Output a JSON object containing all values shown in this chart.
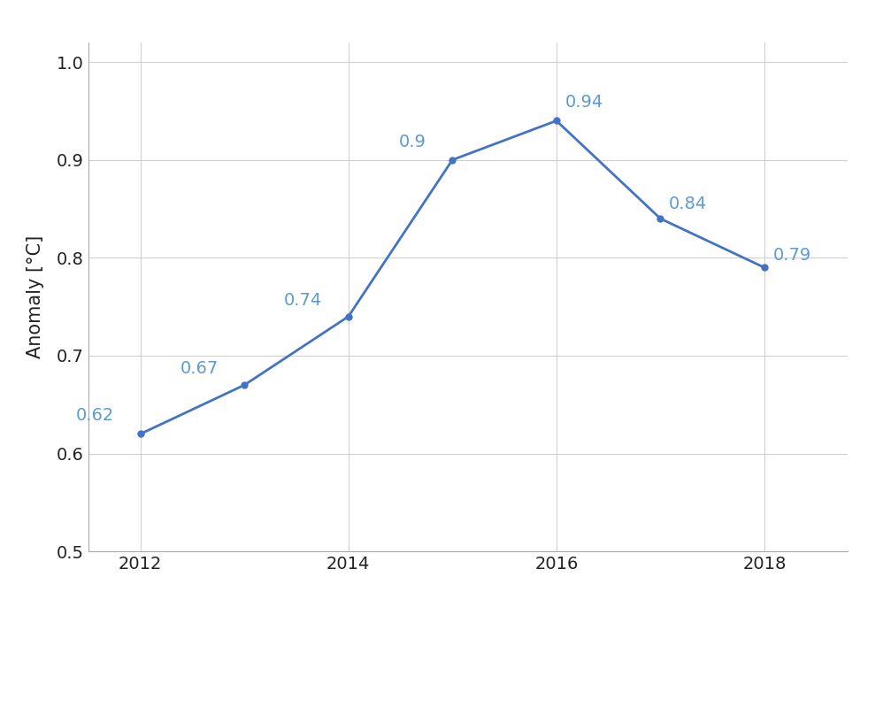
{
  "years": [
    2012,
    2013,
    2014,
    2015,
    2016,
    2017,
    2018
  ],
  "values": [
    0.62,
    0.67,
    0.74,
    0.9,
    0.94,
    0.84,
    0.79
  ],
  "labels": [
    "0.62",
    "0.67",
    "0.74",
    "0.9",
    "0.94",
    "0.84",
    "0.79"
  ],
  "line_color": "#4472C4",
  "marker_color": "#4472C4",
  "title": "",
  "ylabel": "Anomaly [°C]",
  "xlabel": "",
  "ylim": [
    0.5,
    1.02
  ],
  "xlim": [
    2011.5,
    2018.8
  ],
  "xticks": [
    2012,
    2014,
    2016,
    2018
  ],
  "yticks": [
    0.5,
    0.6,
    0.7,
    0.8,
    0.9,
    1.0
  ],
  "background_color": "#ffffff",
  "grid_color": "#d0d0d0",
  "label_color": "#5b9bd5",
  "label_fontsize": 14,
  "axis_fontsize": 15,
  "tick_fontsize": 14,
  "line_width": 2.0,
  "marker_size": 5
}
